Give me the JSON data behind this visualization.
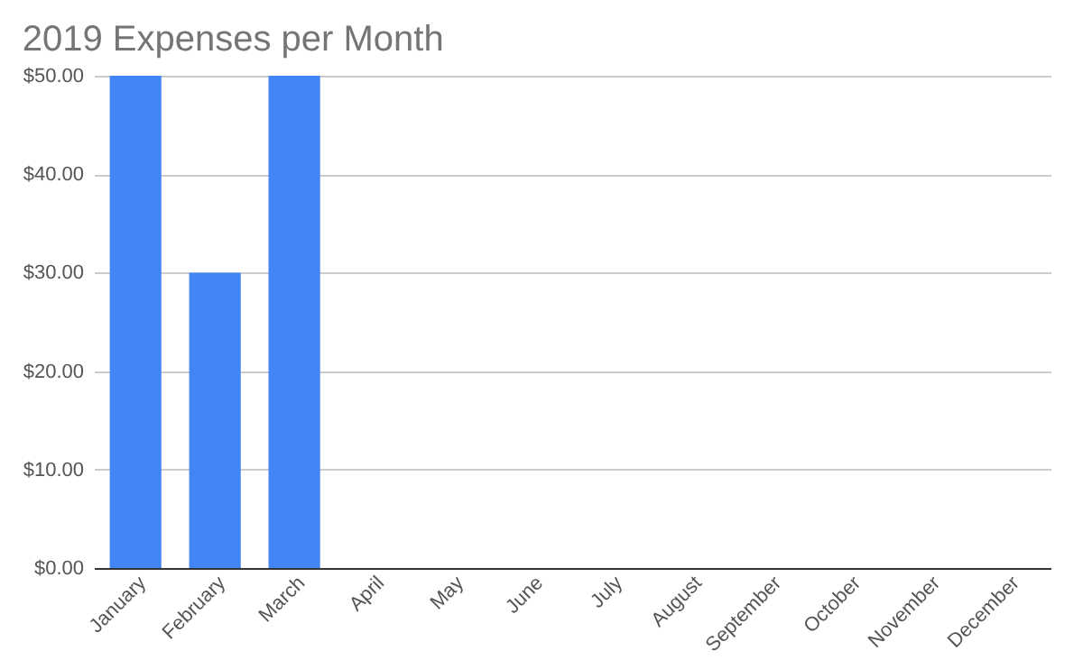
{
  "chart_data": {
    "type": "bar",
    "title": "2019 Expenses per Month",
    "categories": [
      "January",
      "February",
      "March",
      "April",
      "May",
      "June",
      "July",
      "August",
      "September",
      "October",
      "November",
      "December"
    ],
    "values": [
      50,
      30,
      50,
      0,
      0,
      0,
      0,
      0,
      0,
      0,
      0,
      0
    ],
    "color": "#4285f4",
    "ylim": [
      0,
      50
    ],
    "yticks": [
      {
        "value": 0,
        "label": "$0.00"
      },
      {
        "value": 10,
        "label": "$10.00"
      },
      {
        "value": 20,
        "label": "$20.00"
      },
      {
        "value": 30,
        "label": "$30.00"
      },
      {
        "value": 40,
        "label": "$40.00"
      },
      {
        "value": 50,
        "label": "$50.00"
      }
    ],
    "grid": "y"
  }
}
